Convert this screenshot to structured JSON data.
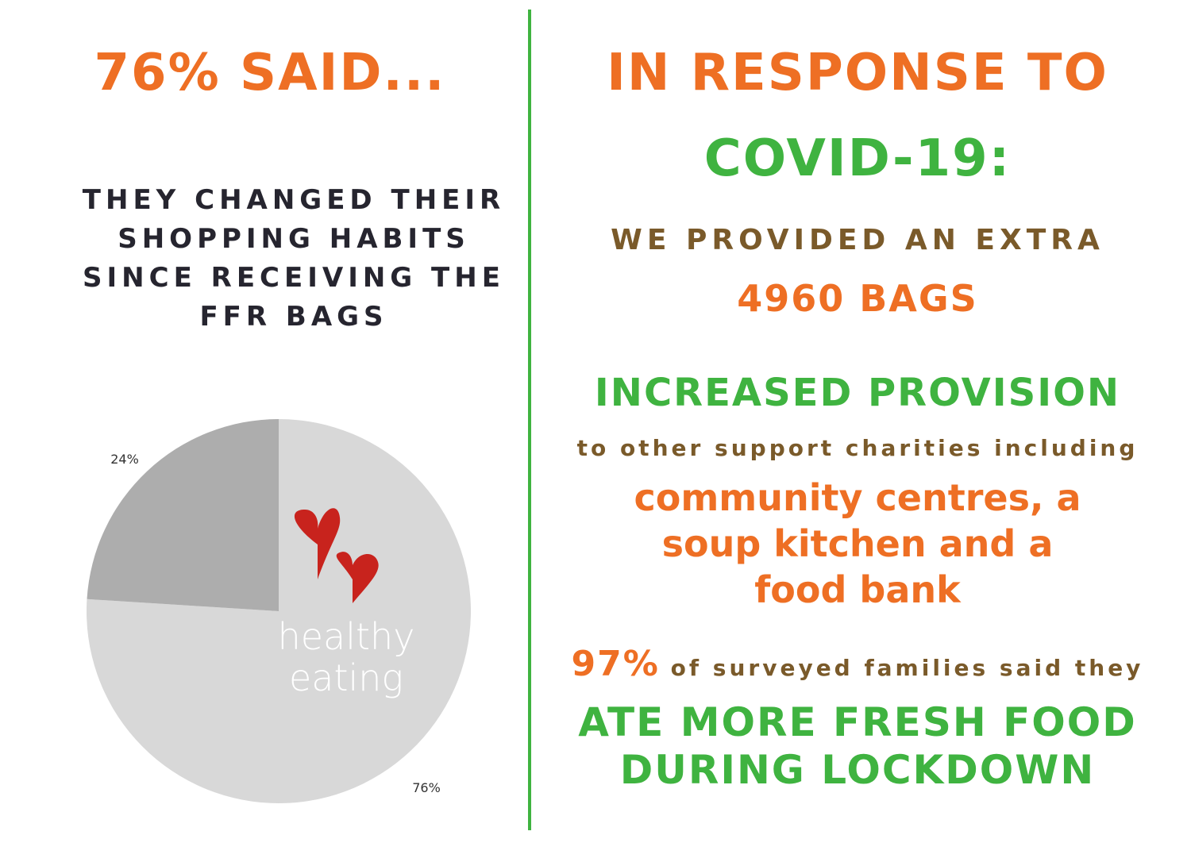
{
  "left": {
    "title": "76% SAID...",
    "subtitle_lines": [
      "THEY CHANGED THEIR",
      "SHOPPING HABITS",
      "SINCE RECEIVING THE",
      "FFR BAGS"
    ]
  },
  "right": {
    "line1": "IN RESPONSE TO",
    "line2": "COVID-19:",
    "line3": "WE PROVIDED AN EXTRA",
    "line4": "4960 BAGS",
    "line5": "INCREASED PROVISION",
    "line6": "to other support charities including",
    "line7_lines": [
      "community centres, a",
      "soup kitchen and a",
      "food bank"
    ],
    "line8_pct": "97%",
    "line8_text": "of surveyed families said they",
    "line9_lines": [
      "ATE MORE FRESH FOOD",
      "DURING LOCKDOWN"
    ]
  },
  "chart_data": {
    "type": "pie",
    "slices": [
      {
        "label": "76%",
        "value": 76,
        "color": "#d8d8d8"
      },
      {
        "label": "24%",
        "value": 24,
        "color": "#adadad"
      }
    ],
    "center_text": [
      "healthy",
      "eating"
    ],
    "icon": "hearts-icon",
    "heart_color": "#c8231d"
  },
  "colors": {
    "orange": "#ee6f24",
    "green": "#3fb340",
    "brown": "#7a5a2a",
    "dark": "#26252f"
  }
}
